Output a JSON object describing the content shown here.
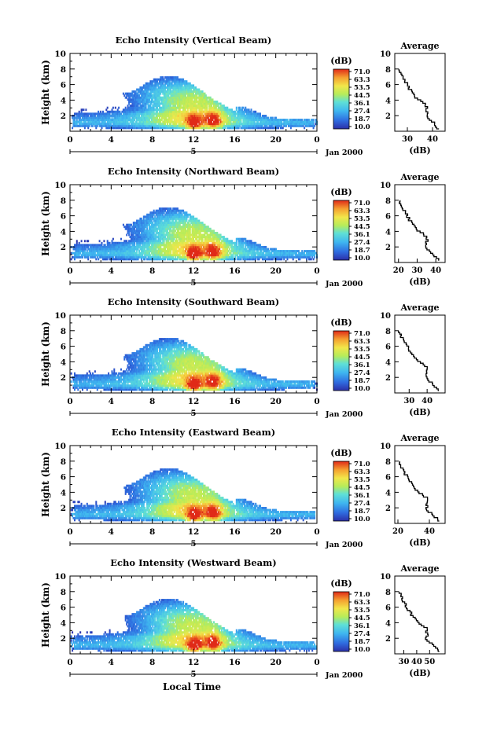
{
  "figure": {
    "ylabel": "Height (km)",
    "xlabel_bottom": "Local Time",
    "date_label": "Jan 2000",
    "day_marker": "5",
    "colorbar_unit": "(dB)",
    "average_title": "Average",
    "average_xlabel": "(dB)"
  },
  "chart_data": [
    {
      "type": "heatmap",
      "title": "Echo Intensity (Vertical Beam)",
      "x_range": [
        0,
        24
      ],
      "x_ticks": [
        "0",
        "4",
        "8",
        "12",
        "16",
        "20",
        "0"
      ],
      "y_range": [
        0,
        10
      ],
      "y_ticks": [
        "2",
        "4",
        "6",
        "8",
        "10"
      ],
      "colorbar": {
        "min": 10.0,
        "max": 71.0,
        "ticks": [
          "71.0",
          "63.3",
          "53.5",
          "44.5",
          "36.1",
          "27.4",
          "18.7",
          "10.0"
        ]
      },
      "average": {
        "x_range": [
          25,
          45
        ],
        "x_ticks": [
          "30",
          "40"
        ],
        "y_range": [
          0,
          10
        ],
        "y_ticks": [
          "2",
          "4",
          "6",
          "8",
          "10"
        ]
      }
    },
    {
      "type": "heatmap",
      "title": "Echo Intensity (Northward Beam)",
      "x_range": [
        0,
        24
      ],
      "x_ticks": [
        "0",
        "4",
        "8",
        "12",
        "16",
        "20",
        "0"
      ],
      "y_range": [
        0,
        10
      ],
      "y_ticks": [
        "2",
        "4",
        "6",
        "8",
        "10"
      ],
      "colorbar": {
        "min": 10.0,
        "max": 71.0,
        "ticks": [
          "71.0",
          "63.3",
          "53.5",
          "44.5",
          "36.1",
          "27.4",
          "18.7",
          "10.0"
        ]
      },
      "average": {
        "x_range": [
          18,
          45
        ],
        "x_ticks": [
          "20",
          "30",
          "40"
        ],
        "y_range": [
          0,
          10
        ],
        "y_ticks": [
          "2",
          "4",
          "6",
          "8",
          "10"
        ]
      }
    },
    {
      "type": "heatmap",
      "title": "Echo Intensity (Southward Beam)",
      "x_range": [
        0,
        24
      ],
      "x_ticks": [
        "0",
        "4",
        "8",
        "12",
        "16",
        "20",
        "0"
      ],
      "y_range": [
        0,
        10
      ],
      "y_ticks": [
        "2",
        "4",
        "6",
        "8",
        "10"
      ],
      "colorbar": {
        "min": 10.0,
        "max": 71.0,
        "ticks": [
          "71.0",
          "63.3",
          "53.5",
          "44.5",
          "36.1",
          "27.4",
          "18.7",
          "10.0"
        ]
      },
      "average": {
        "x_range": [
          22,
          50
        ],
        "x_ticks": [
          "30",
          "40"
        ],
        "y_range": [
          0,
          10
        ],
        "y_ticks": [
          "2",
          "4",
          "6",
          "8",
          "10"
        ]
      }
    },
    {
      "type": "heatmap",
      "title": "Echo Intensity (Eastward Beam)",
      "x_range": [
        0,
        24
      ],
      "x_ticks": [
        "0",
        "4",
        "8",
        "12",
        "16",
        "20",
        "0"
      ],
      "y_range": [
        0,
        10
      ],
      "y_ticks": [
        "2",
        "4",
        "6",
        "8",
        "10"
      ],
      "colorbar": {
        "min": 10.0,
        "max": 71.0,
        "ticks": [
          "71.0",
          "63.3",
          "53.5",
          "44.5",
          "36.1",
          "27.4",
          "18.7",
          "10.0"
        ]
      },
      "average": {
        "x_range": [
          18,
          50
        ],
        "x_ticks": [
          "20",
          "40"
        ],
        "y_range": [
          0,
          10
        ],
        "y_ticks": [
          "2",
          "4",
          "6",
          "8",
          "10"
        ]
      }
    },
    {
      "type": "heatmap",
      "title": "Echo Intensity (Westward Beam)",
      "x_range": [
        0,
        24
      ],
      "x_ticks": [
        "0",
        "4",
        "8",
        "12",
        "16",
        "20",
        "0"
      ],
      "y_range": [
        0,
        10
      ],
      "y_ticks": [
        "2",
        "4",
        "6",
        "8",
        "10"
      ],
      "colorbar": {
        "min": 10.0,
        "max": 71.0,
        "ticks": [
          "71.0",
          "63.3",
          "53.5",
          "44.5",
          "36.1",
          "27.4",
          "18.7",
          "10.0"
        ]
      },
      "average": {
        "x_range": [
          23,
          62
        ],
        "x_ticks": [
          "30",
          "40",
          "50"
        ],
        "y_range": [
          0,
          10
        ],
        "y_ticks": [
          "2",
          "4",
          "6",
          "8",
          "10"
        ]
      }
    }
  ]
}
